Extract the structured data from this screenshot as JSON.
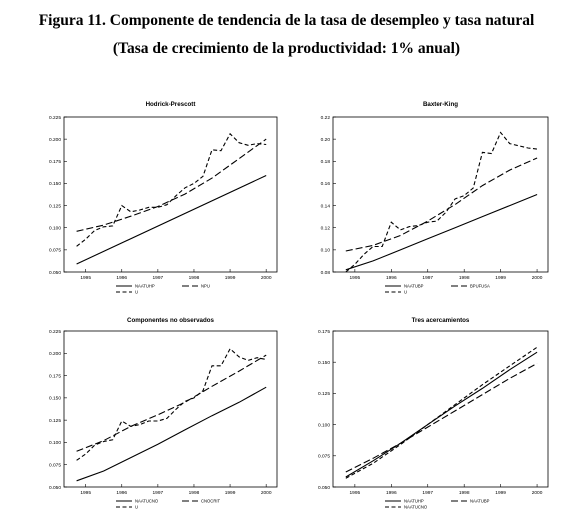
{
  "figure": {
    "title": "Figura 11. Componente de tendencia de la tasa de desempleo y tasa natural",
    "subtitle": "(Tasa de crecimiento de la productividad: 1% anual)"
  },
  "chart_data": [
    {
      "type": "line",
      "title": "Hodrick-Prescott",
      "xlabel": "",
      "ylabel": "",
      "xlim": [
        1994.4,
        2000.3
      ],
      "ylim": [
        0.05,
        0.225
      ],
      "x_ticks": [
        1995,
        1996,
        1997,
        1998,
        1999,
        2000
      ],
      "y_ticks": [
        "0.050",
        "0.075",
        "0.100",
        "0.125",
        "0.150",
        "0.175",
        "0.200",
        "0.225"
      ],
      "legend_position": "bottom",
      "series": [
        {
          "name": "NAATUHP",
          "style": "solid",
          "x": [
            1994.75,
            2000.0
          ],
          "y": [
            0.059,
            0.159
          ]
        },
        {
          "name": "NPU",
          "style": "long-dash",
          "x": [
            1994.75,
            1995.5,
            1996.25,
            1997.0,
            1997.75,
            1998.5,
            1999.25,
            2000.0
          ],
          "y": [
            0.096,
            0.103,
            0.113,
            0.124,
            0.138,
            0.156,
            0.178,
            0.2
          ]
        },
        {
          "name": "U",
          "style": "dash",
          "x": [
            1994.75,
            1995.0,
            1995.25,
            1995.5,
            1995.75,
            1996.0,
            1996.25,
            1996.5,
            1996.75,
            1997.0,
            1997.25,
            1997.5,
            1997.75,
            1998.0,
            1998.25,
            1998.5,
            1998.75,
            1999.0,
            1999.25,
            1999.5,
            1999.75,
            2000.0
          ],
          "y": [
            0.079,
            0.087,
            0.097,
            0.101,
            0.102,
            0.125,
            0.118,
            0.12,
            0.123,
            0.123,
            0.126,
            0.136,
            0.145,
            0.15,
            0.158,
            0.188,
            0.187,
            0.206,
            0.196,
            0.193,
            0.195,
            0.194
          ]
        }
      ]
    },
    {
      "type": "line",
      "title": "Baxter-King",
      "xlabel": "",
      "ylabel": "",
      "xlim": [
        1994.4,
        2000.3
      ],
      "ylim": [
        0.08,
        0.22
      ],
      "x_ticks": [
        1995,
        1996,
        1997,
        1998,
        1999,
        2000
      ],
      "y_ticks": [
        "0.08",
        "0.10",
        "0.12",
        "0.14",
        "0.16",
        "0.18",
        "0.20",
        "0.22"
      ],
      "legend_position": "bottom",
      "series": [
        {
          "name": "NAATUBP",
          "style": "solid",
          "x": [
            1994.75,
            1995.5,
            1996.25,
            1997.0,
            1997.75,
            1998.5,
            1999.25,
            2000.0
          ],
          "y": [
            0.082,
            0.09,
            0.1,
            0.11,
            0.12,
            0.13,
            0.14,
            0.15
          ]
        },
        {
          "name": "BPUFUSA",
          "style": "long-dash",
          "x": [
            1994.75,
            1995.5,
            1996.25,
            1997.0,
            1997.75,
            1998.5,
            1999.25,
            2000.0
          ],
          "y": [
            0.099,
            0.104,
            0.113,
            0.126,
            0.141,
            0.158,
            0.172,
            0.183
          ]
        },
        {
          "name": "U",
          "style": "dash",
          "x": [
            1994.75,
            1995.0,
            1995.25,
            1995.5,
            1995.75,
            1996.0,
            1996.25,
            1996.5,
            1996.75,
            1997.0,
            1997.25,
            1997.5,
            1997.75,
            1998.0,
            1998.25,
            1998.5,
            1998.75,
            1999.0,
            1999.25,
            1999.5,
            1999.75,
            2000.0
          ],
          "y": [
            0.08,
            0.087,
            0.096,
            0.103,
            0.103,
            0.125,
            0.118,
            0.121,
            0.122,
            0.125,
            0.126,
            0.134,
            0.146,
            0.149,
            0.156,
            0.188,
            0.187,
            0.206,
            0.196,
            0.194,
            0.192,
            0.191
          ]
        }
      ]
    },
    {
      "type": "line",
      "title": "Componentes no observados",
      "xlabel": "",
      "ylabel": "",
      "xlim": [
        1994.4,
        2000.3
      ],
      "ylim": [
        0.05,
        0.225
      ],
      "x_ticks": [
        1995,
        1996,
        1997,
        1998,
        1999,
        2000
      ],
      "y_ticks": [
        "0.050",
        "0.075",
        "0.100",
        "0.125",
        "0.150",
        "0.175",
        "0.200",
        "0.225"
      ],
      "legend_position": "bottom",
      "series": [
        {
          "name": "NAATUCNO",
          "style": "solid",
          "x": [
            1994.75,
            1995.5,
            1996.25,
            1997.0,
            1997.75,
            1998.5,
            1999.25,
            2000.0
          ],
          "y": [
            0.057,
            0.068,
            0.083,
            0.098,
            0.114,
            0.13,
            0.145,
            0.162
          ]
        },
        {
          "name": "CNOCRIT",
          "style": "long-dash",
          "x": [
            1994.75,
            1995.5,
            1996.25,
            1997.0,
            1997.75,
            1998.5,
            1999.25,
            2000.0
          ],
          "y": [
            0.09,
            0.102,
            0.118,
            0.131,
            0.145,
            0.163,
            0.18,
            0.198
          ]
        },
        {
          "name": "U",
          "style": "dash",
          "x": [
            1994.75,
            1995.0,
            1995.25,
            1995.5,
            1995.75,
            1996.0,
            1996.25,
            1996.5,
            1996.75,
            1997.0,
            1997.25,
            1997.5,
            1997.75,
            1998.0,
            1998.25,
            1998.5,
            1998.75,
            1999.0,
            1999.25,
            1999.5,
            1999.75,
            2000.0
          ],
          "y": [
            0.08,
            0.087,
            0.097,
            0.101,
            0.103,
            0.124,
            0.118,
            0.12,
            0.124,
            0.124,
            0.127,
            0.137,
            0.146,
            0.15,
            0.158,
            0.186,
            0.186,
            0.205,
            0.196,
            0.192,
            0.195,
            0.193
          ]
        }
      ]
    },
    {
      "type": "line",
      "title": "Tres acercamientos",
      "xlabel": "",
      "ylabel": "",
      "xlim": [
        1994.4,
        2000.3
      ],
      "ylim": [
        0.05,
        0.175
      ],
      "x_ticks": [
        1995,
        1996,
        1997,
        1998,
        1999,
        2000
      ],
      "y_ticks": [
        "0.050",
        "0.075",
        "0.100",
        "0.125",
        "0.150",
        "0.175"
      ],
      "legend_position": "bottom",
      "series": [
        {
          "name": "NAATUHP",
          "style": "solid",
          "x": [
            1994.75,
            1995.5,
            1996.25,
            1997.0,
            1997.75,
            1998.5,
            1999.25,
            2000.0
          ],
          "y": [
            0.058,
            0.071,
            0.085,
            0.1,
            0.115,
            0.129,
            0.144,
            0.158
          ]
        },
        {
          "name": "NAATUBP",
          "style": "long-dash",
          "x": [
            1994.75,
            1995.5,
            1996.25,
            1997.0,
            1997.75,
            1998.5,
            1999.25,
            2000.0
          ],
          "y": [
            0.062,
            0.073,
            0.085,
            0.098,
            0.111,
            0.124,
            0.137,
            0.149
          ]
        },
        {
          "name": "NAATUCNO",
          "style": "dash",
          "x": [
            1994.75,
            1995.5,
            1996.25,
            1997.0,
            1997.75,
            1998.5,
            1999.25,
            2000.0
          ],
          "y": [
            0.057,
            0.069,
            0.084,
            0.1,
            0.116,
            0.132,
            0.147,
            0.162
          ]
        }
      ]
    }
  ]
}
